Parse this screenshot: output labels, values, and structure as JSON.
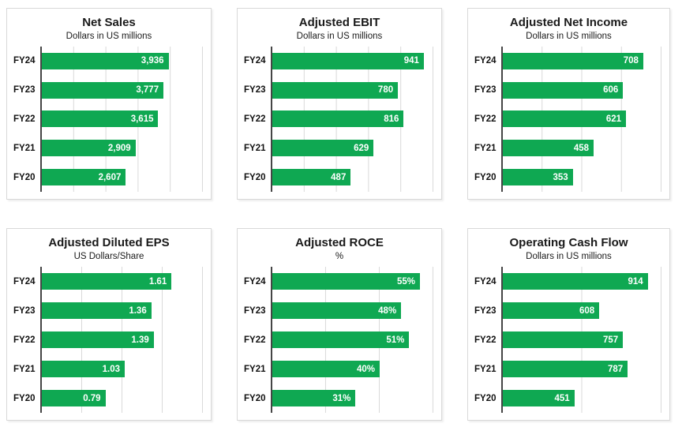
{
  "colors": {
    "bar": "#0FA852",
    "grid": "#D9D9D9",
    "axis": "#454545",
    "panel_border": "#D9D9D9",
    "value_text": "#FFFFFF",
    "text": "#1A1A1A"
  },
  "chart_data": [
    {
      "type": "bar",
      "orientation": "horizontal",
      "title": "Net Sales",
      "subtitle": "Dollars in US millions",
      "categories": [
        "FY24",
        "FY23",
        "FY22",
        "FY21",
        "FY20"
      ],
      "values": [
        3936,
        3777,
        3615,
        2909,
        2607
      ],
      "value_labels": [
        "3,936",
        "3,777",
        "3,615",
        "2,909",
        "2,607"
      ],
      "xlim": [
        0,
        5000
      ],
      "grid_interval": 1000,
      "grid": true,
      "legend": "none",
      "value_label_position": "inside-end"
    },
    {
      "type": "bar",
      "orientation": "horizontal",
      "title": "Adjusted EBIT",
      "subtitle": "Dollars in US millions",
      "categories": [
        "FY24",
        "FY23",
        "FY22",
        "FY21",
        "FY20"
      ],
      "values": [
        941,
        780,
        816,
        629,
        487
      ],
      "value_labels": [
        "941",
        "780",
        "816",
        "629",
        "487"
      ],
      "xlim": [
        0,
        1000
      ],
      "grid_interval": 200,
      "grid": true,
      "legend": "none",
      "value_label_position": "inside-end"
    },
    {
      "type": "bar",
      "orientation": "horizontal",
      "title": "Adjusted Net Income",
      "subtitle": "Dollars in US millions",
      "categories": [
        "FY24",
        "FY23",
        "FY22",
        "FY21",
        "FY20"
      ],
      "values": [
        708,
        606,
        621,
        458,
        353
      ],
      "value_labels": [
        "708",
        "606",
        "621",
        "458",
        "353"
      ],
      "xlim": [
        0,
        800
      ],
      "grid_interval": 200,
      "grid": true,
      "legend": "none",
      "value_label_position": "inside-end"
    },
    {
      "type": "bar",
      "orientation": "horizontal",
      "title": "Adjusted Diluted EPS",
      "subtitle": "US Dollars/Share",
      "categories": [
        "FY24",
        "FY23",
        "FY22",
        "FY21",
        "FY20"
      ],
      "values": [
        1.61,
        1.36,
        1.39,
        1.03,
        0.79
      ],
      "value_labels": [
        "1.61",
        "1.36",
        "1.39",
        "1.03",
        "0.79"
      ],
      "xlim": [
        0,
        2
      ],
      "grid_interval": 0.5,
      "grid": true,
      "legend": "none",
      "value_label_position": "inside-end"
    },
    {
      "type": "bar",
      "orientation": "horizontal",
      "title": "Adjusted ROCE",
      "subtitle": "%",
      "categories": [
        "FY24",
        "FY23",
        "FY22",
        "FY21",
        "FY20"
      ],
      "values": [
        55,
        48,
        51,
        40,
        31
      ],
      "value_labels": [
        "55%",
        "48%",
        "51%",
        "40%",
        "31%"
      ],
      "xlim": [
        0,
        60
      ],
      "grid_interval": 20,
      "grid": true,
      "legend": "none",
      "value_label_position": "inside-end"
    },
    {
      "type": "bar",
      "orientation": "horizontal",
      "title": "Operating Cash Flow",
      "subtitle": "Dollars in US millions",
      "categories": [
        "FY24",
        "FY23",
        "FY22",
        "FY21",
        "FY20"
      ],
      "values": [
        914,
        608,
        757,
        787,
        451
      ],
      "value_labels": [
        "914",
        "608",
        "757",
        "787",
        "451"
      ],
      "xlim": [
        0,
        1000
      ],
      "grid_interval": 500,
      "grid": true,
      "legend": "none",
      "value_label_position": "inside-end"
    }
  ]
}
